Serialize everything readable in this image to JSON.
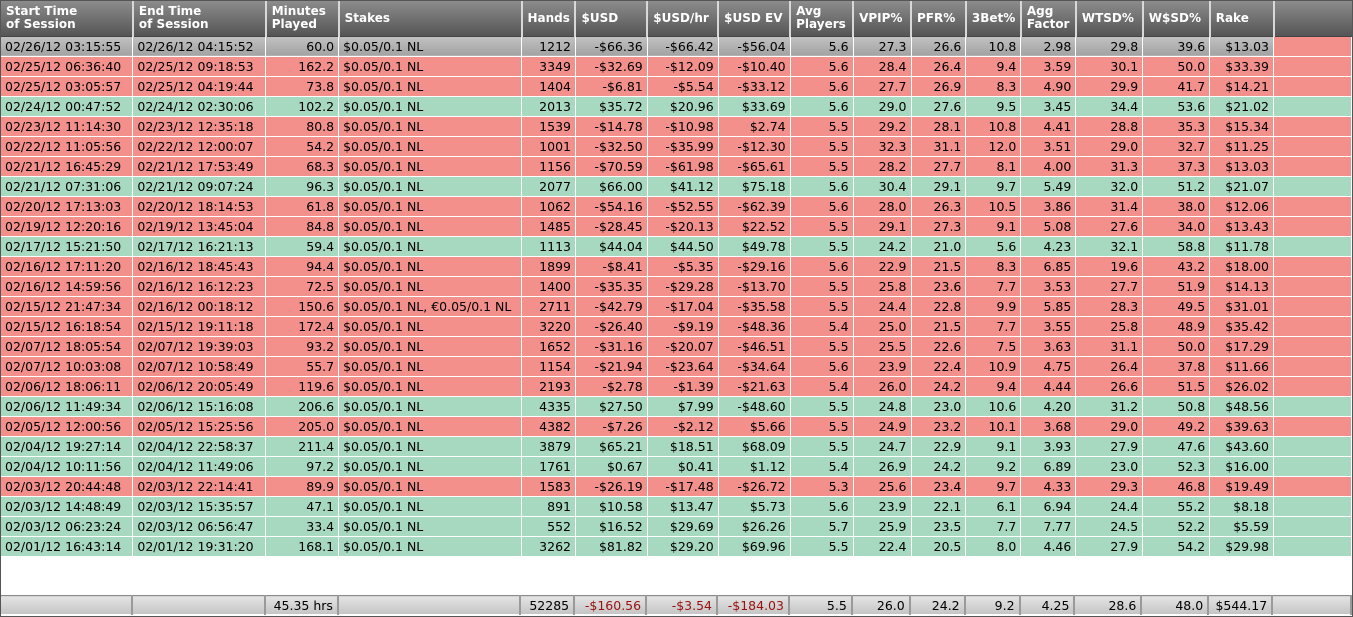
{
  "columns": [
    {
      "line1": "Start Time",
      "line2": "of Session"
    },
    {
      "line1": "End Time",
      "line2": "of Session"
    },
    {
      "line1": "Minutes",
      "line2": "Played"
    },
    {
      "line1": "Stakes",
      "line2": ""
    },
    {
      "line1": "Hands",
      "line2": ""
    },
    {
      "line1": "$USD",
      "line2": ""
    },
    {
      "line1": "$USD/hr",
      "line2": ""
    },
    {
      "line1": "$USD EV",
      "line2": ""
    },
    {
      "line1": "Avg",
      "line2": "Players"
    },
    {
      "line1": "VPIP%",
      "line2": ""
    },
    {
      "line1": "PFR%",
      "line2": ""
    },
    {
      "line1": "3Bet%",
      "line2": ""
    },
    {
      "line1": "Agg",
      "line2": "Factor"
    },
    {
      "line1": "WTSD%",
      "line2": ""
    },
    {
      "line1": "W$SD%",
      "line2": ""
    },
    {
      "line1": "Rake",
      "line2": ""
    }
  ],
  "row_colors": {
    "loss": "#f4908c",
    "win": "#a7d8c0",
    "selected": "#b0b0b0"
  },
  "rows": [
    {
      "status": "selected",
      "cells": [
        "02/26/12 03:15:55",
        "02/26/12 04:15:52",
        "60.0",
        "$0.05/0.1 NL",
        "1212",
        "-$66.36",
        "-$66.42",
        "-$56.04",
        "5.6",
        "27.3",
        "26.6",
        "10.8",
        "2.98",
        "29.8",
        "39.6",
        "$13.03"
      ]
    },
    {
      "status": "loss",
      "cells": [
        "02/25/12 06:36:40",
        "02/25/12 09:18:53",
        "162.2",
        "$0.05/0.1 NL",
        "3349",
        "-$32.69",
        "-$12.09",
        "-$10.40",
        "5.6",
        "28.4",
        "26.4",
        "9.4",
        "3.59",
        "30.1",
        "50.0",
        "$33.39"
      ]
    },
    {
      "status": "loss",
      "cells": [
        "02/25/12 03:05:57",
        "02/25/12 04:19:44",
        "73.8",
        "$0.05/0.1 NL",
        "1404",
        "-$6.81",
        "-$5.54",
        "-$33.12",
        "5.6",
        "27.7",
        "26.9",
        "8.3",
        "4.90",
        "29.9",
        "41.7",
        "$14.21"
      ]
    },
    {
      "status": "win",
      "cells": [
        "02/24/12 00:47:52",
        "02/24/12 02:30:06",
        "102.2",
        "$0.05/0.1 NL",
        "2013",
        "$35.72",
        "$20.96",
        "$33.69",
        "5.6",
        "29.0",
        "27.6",
        "9.5",
        "3.45",
        "34.4",
        "53.6",
        "$21.02"
      ]
    },
    {
      "status": "loss",
      "cells": [
        "02/23/12 11:14:30",
        "02/23/12 12:35:18",
        "80.8",
        "$0.05/0.1 NL",
        "1539",
        "-$14.78",
        "-$10.98",
        "$2.74",
        "5.5",
        "29.2",
        "28.1",
        "10.8",
        "4.41",
        "28.8",
        "35.3",
        "$15.34"
      ]
    },
    {
      "status": "loss",
      "cells": [
        "02/22/12 11:05:56",
        "02/22/12 12:00:07",
        "54.2",
        "$0.05/0.1 NL",
        "1001",
        "-$32.50",
        "-$35.99",
        "-$12.30",
        "5.5",
        "32.3",
        "31.1",
        "12.0",
        "3.51",
        "29.0",
        "32.7",
        "$11.25"
      ]
    },
    {
      "status": "loss",
      "cells": [
        "02/21/12 16:45:29",
        "02/21/12 17:53:49",
        "68.3",
        "$0.05/0.1 NL",
        "1156",
        "-$70.59",
        "-$61.98",
        "-$65.61",
        "5.5",
        "28.2",
        "27.7",
        "8.1",
        "4.00",
        "31.3",
        "37.3",
        "$13.03"
      ]
    },
    {
      "status": "win",
      "cells": [
        "02/21/12 07:31:06",
        "02/21/12 09:07:24",
        "96.3",
        "$0.05/0.1 NL",
        "2077",
        "$66.00",
        "$41.12",
        "$75.18",
        "5.6",
        "30.4",
        "29.1",
        "9.7",
        "5.49",
        "32.0",
        "51.2",
        "$21.07"
      ]
    },
    {
      "status": "loss",
      "cells": [
        "02/20/12 17:13:03",
        "02/20/12 18:14:53",
        "61.8",
        "$0.05/0.1 NL",
        "1062",
        "-$54.16",
        "-$52.55",
        "-$62.39",
        "5.6",
        "28.0",
        "26.3",
        "10.5",
        "3.86",
        "31.4",
        "38.0",
        "$12.06"
      ]
    },
    {
      "status": "loss",
      "cells": [
        "02/19/12 12:20:16",
        "02/19/12 13:45:04",
        "84.8",
        "$0.05/0.1 NL",
        "1485",
        "-$28.45",
        "-$20.13",
        "$22.52",
        "5.5",
        "29.1",
        "27.3",
        "9.1",
        "5.08",
        "27.6",
        "34.0",
        "$13.43"
      ]
    },
    {
      "status": "win",
      "cells": [
        "02/17/12 15:21:50",
        "02/17/12 16:21:13",
        "59.4",
        "$0.05/0.1 NL",
        "1113",
        "$44.04",
        "$44.50",
        "$49.78",
        "5.5",
        "24.2",
        "21.0",
        "5.6",
        "4.23",
        "32.1",
        "58.8",
        "$11.78"
      ]
    },
    {
      "status": "loss",
      "cells": [
        "02/16/12 17:11:20",
        "02/16/12 18:45:43",
        "94.4",
        "$0.05/0.1 NL",
        "1899",
        "-$8.41",
        "-$5.35",
        "-$29.16",
        "5.6",
        "22.9",
        "21.5",
        "8.3",
        "6.85",
        "19.6",
        "43.2",
        "$18.00"
      ]
    },
    {
      "status": "loss",
      "cells": [
        "02/16/12 14:59:56",
        "02/16/12 16:12:23",
        "72.5",
        "$0.05/0.1 NL",
        "1400",
        "-$35.35",
        "-$29.28",
        "-$13.70",
        "5.5",
        "25.8",
        "23.6",
        "7.7",
        "3.53",
        "27.7",
        "51.9",
        "$14.13"
      ]
    },
    {
      "status": "loss",
      "cells": [
        "02/15/12 21:47:34",
        "02/16/12 00:18:12",
        "150.6",
        "$0.05/0.1 NL, €0.05/0.1 NL",
        "2711",
        "-$42.79",
        "-$17.04",
        "-$35.58",
        "5.5",
        "24.4",
        "22.8",
        "9.9",
        "5.85",
        "28.3",
        "49.5",
        "$31.01"
      ]
    },
    {
      "status": "loss",
      "cells": [
        "02/15/12 16:18:54",
        "02/15/12 19:11:18",
        "172.4",
        "$0.05/0.1 NL",
        "3220",
        "-$26.40",
        "-$9.19",
        "-$48.36",
        "5.4",
        "25.0",
        "21.5",
        "7.7",
        "3.55",
        "25.8",
        "48.9",
        "$35.42"
      ]
    },
    {
      "status": "loss",
      "cells": [
        "02/07/12 18:05:54",
        "02/07/12 19:39:03",
        "93.2",
        "$0.05/0.1 NL",
        "1652",
        "-$31.16",
        "-$20.07",
        "-$46.51",
        "5.5",
        "25.5",
        "22.6",
        "7.5",
        "3.63",
        "31.1",
        "50.0",
        "$17.29"
      ]
    },
    {
      "status": "loss",
      "cells": [
        "02/07/12 10:03:08",
        "02/07/12 10:58:49",
        "55.7",
        "$0.05/0.1 NL",
        "1154",
        "-$21.94",
        "-$23.64",
        "-$34.64",
        "5.6",
        "23.9",
        "22.4",
        "10.9",
        "4.75",
        "26.4",
        "37.8",
        "$11.66"
      ]
    },
    {
      "status": "loss",
      "cells": [
        "02/06/12 18:06:11",
        "02/06/12 20:05:49",
        "119.6",
        "$0.05/0.1 NL",
        "2193",
        "-$2.78",
        "-$1.39",
        "-$21.63",
        "5.4",
        "26.0",
        "24.2",
        "9.4",
        "4.44",
        "26.6",
        "51.5",
        "$26.02"
      ]
    },
    {
      "status": "win",
      "cells": [
        "02/06/12 11:49:34",
        "02/06/12 15:16:08",
        "206.6",
        "$0.05/0.1 NL",
        "4335",
        "$27.50",
        "$7.99",
        "-$48.60",
        "5.5",
        "24.8",
        "23.0",
        "10.6",
        "4.20",
        "31.2",
        "50.8",
        "$48.56"
      ]
    },
    {
      "status": "loss",
      "cells": [
        "02/05/12 12:00:56",
        "02/05/12 15:25:56",
        "205.0",
        "$0.05/0.1 NL",
        "4382",
        "-$7.26",
        "-$2.12",
        "$5.66",
        "5.5",
        "24.9",
        "23.2",
        "10.1",
        "3.68",
        "29.0",
        "49.2",
        "$39.63"
      ]
    },
    {
      "status": "win",
      "cells": [
        "02/04/12 19:27:14",
        "02/04/12 22:58:37",
        "211.4",
        "$0.05/0.1 NL",
        "3879",
        "$65.21",
        "$18.51",
        "$68.09",
        "5.5",
        "24.7",
        "22.9",
        "9.1",
        "3.93",
        "27.9",
        "47.6",
        "$43.60"
      ]
    },
    {
      "status": "win",
      "cells": [
        "02/04/12 10:11:56",
        "02/04/12 11:49:06",
        "97.2",
        "$0.05/0.1 NL",
        "1761",
        "$0.67",
        "$0.41",
        "$1.12",
        "5.4",
        "26.9",
        "24.2",
        "9.2",
        "6.89",
        "23.0",
        "52.3",
        "$16.00"
      ]
    },
    {
      "status": "loss",
      "cells": [
        "02/03/12 20:44:48",
        "02/03/12 22:14:41",
        "89.9",
        "$0.05/0.1 NL",
        "1583",
        "-$26.19",
        "-$17.48",
        "-$26.72",
        "5.3",
        "25.6",
        "23.4",
        "9.7",
        "4.33",
        "29.3",
        "46.8",
        "$19.49"
      ]
    },
    {
      "status": "win",
      "cells": [
        "02/03/12 14:48:49",
        "02/03/12 15:35:57",
        "47.1",
        "$0.05/0.1 NL",
        "891",
        "$10.58",
        "$13.47",
        "$5.73",
        "5.6",
        "23.9",
        "22.1",
        "6.1",
        "6.94",
        "24.4",
        "55.2",
        "$8.18"
      ]
    },
    {
      "status": "win",
      "cells": [
        "02/03/12 06:23:24",
        "02/03/12 06:56:47",
        "33.4",
        "$0.05/0.1 NL",
        "552",
        "$16.52",
        "$29.69",
        "$26.26",
        "5.7",
        "25.9",
        "23.5",
        "7.7",
        "7.77",
        "24.5",
        "52.2",
        "$5.59"
      ]
    },
    {
      "status": "win",
      "cells": [
        "02/01/12 16:43:14",
        "02/01/12 19:31:20",
        "168.1",
        "$0.05/0.1 NL",
        "3262",
        "$81.82",
        "$29.20",
        "$69.96",
        "5.5",
        "22.4",
        "20.5",
        "8.0",
        "4.46",
        "27.9",
        "54.2",
        "$29.98"
      ]
    }
  ],
  "totals": [
    "",
    "",
    "45.35 hrs",
    "",
    "52285",
    "-$160.56",
    "-$3.54",
    "-$184.03",
    "5.5",
    "26.0",
    "24.2",
    "9.2",
    "4.25",
    "28.6",
    "48.0",
    "$544.17"
  ]
}
